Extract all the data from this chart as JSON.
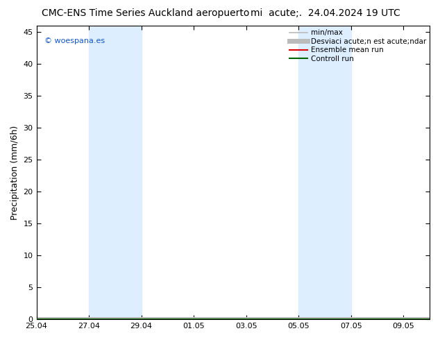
{
  "title": "CMC-ENS Time Series Auckland aeropuerto",
  "title2": "mi  acute;.  24.04.2024 19 UTC",
  "ylabel": "Precipitation (mm/6h)",
  "watermark": "© woespana.es",
  "ylim": [
    0,
    46
  ],
  "yticks": [
    0,
    5,
    10,
    15,
    20,
    25,
    30,
    35,
    40,
    45
  ],
  "xlim": [
    0,
    15
  ],
  "xtick_labels": [
    "25.04",
    "27.04",
    "29.04",
    "01.05",
    "03.05",
    "05.05",
    "07.05",
    "09.05"
  ],
  "xtick_positions": [
    0,
    2,
    4,
    6,
    8,
    10,
    12,
    14
  ],
  "shaded_regions": [
    {
      "x_start": 2,
      "x_end": 4
    },
    {
      "x_start": 10,
      "x_end": 12
    }
  ],
  "shade_color": "#dceeff",
  "legend_items": [
    {
      "label": "min/max",
      "color": "#bbbbbb",
      "lw": 1.2
    },
    {
      "label": "Desviaci acute;n est acute;ndar",
      "color": "#bbbbbb",
      "lw": 5
    },
    {
      "label": "Ensemble mean run",
      "color": "#dd0000",
      "lw": 1.5
    },
    {
      "label": "Controll run",
      "color": "#006600",
      "lw": 1.5
    }
  ],
  "bg_color": "#ffffff",
  "title_fontsize": 10,
  "label_fontsize": 9,
  "tick_fontsize": 8,
  "legend_fontsize": 7.5
}
